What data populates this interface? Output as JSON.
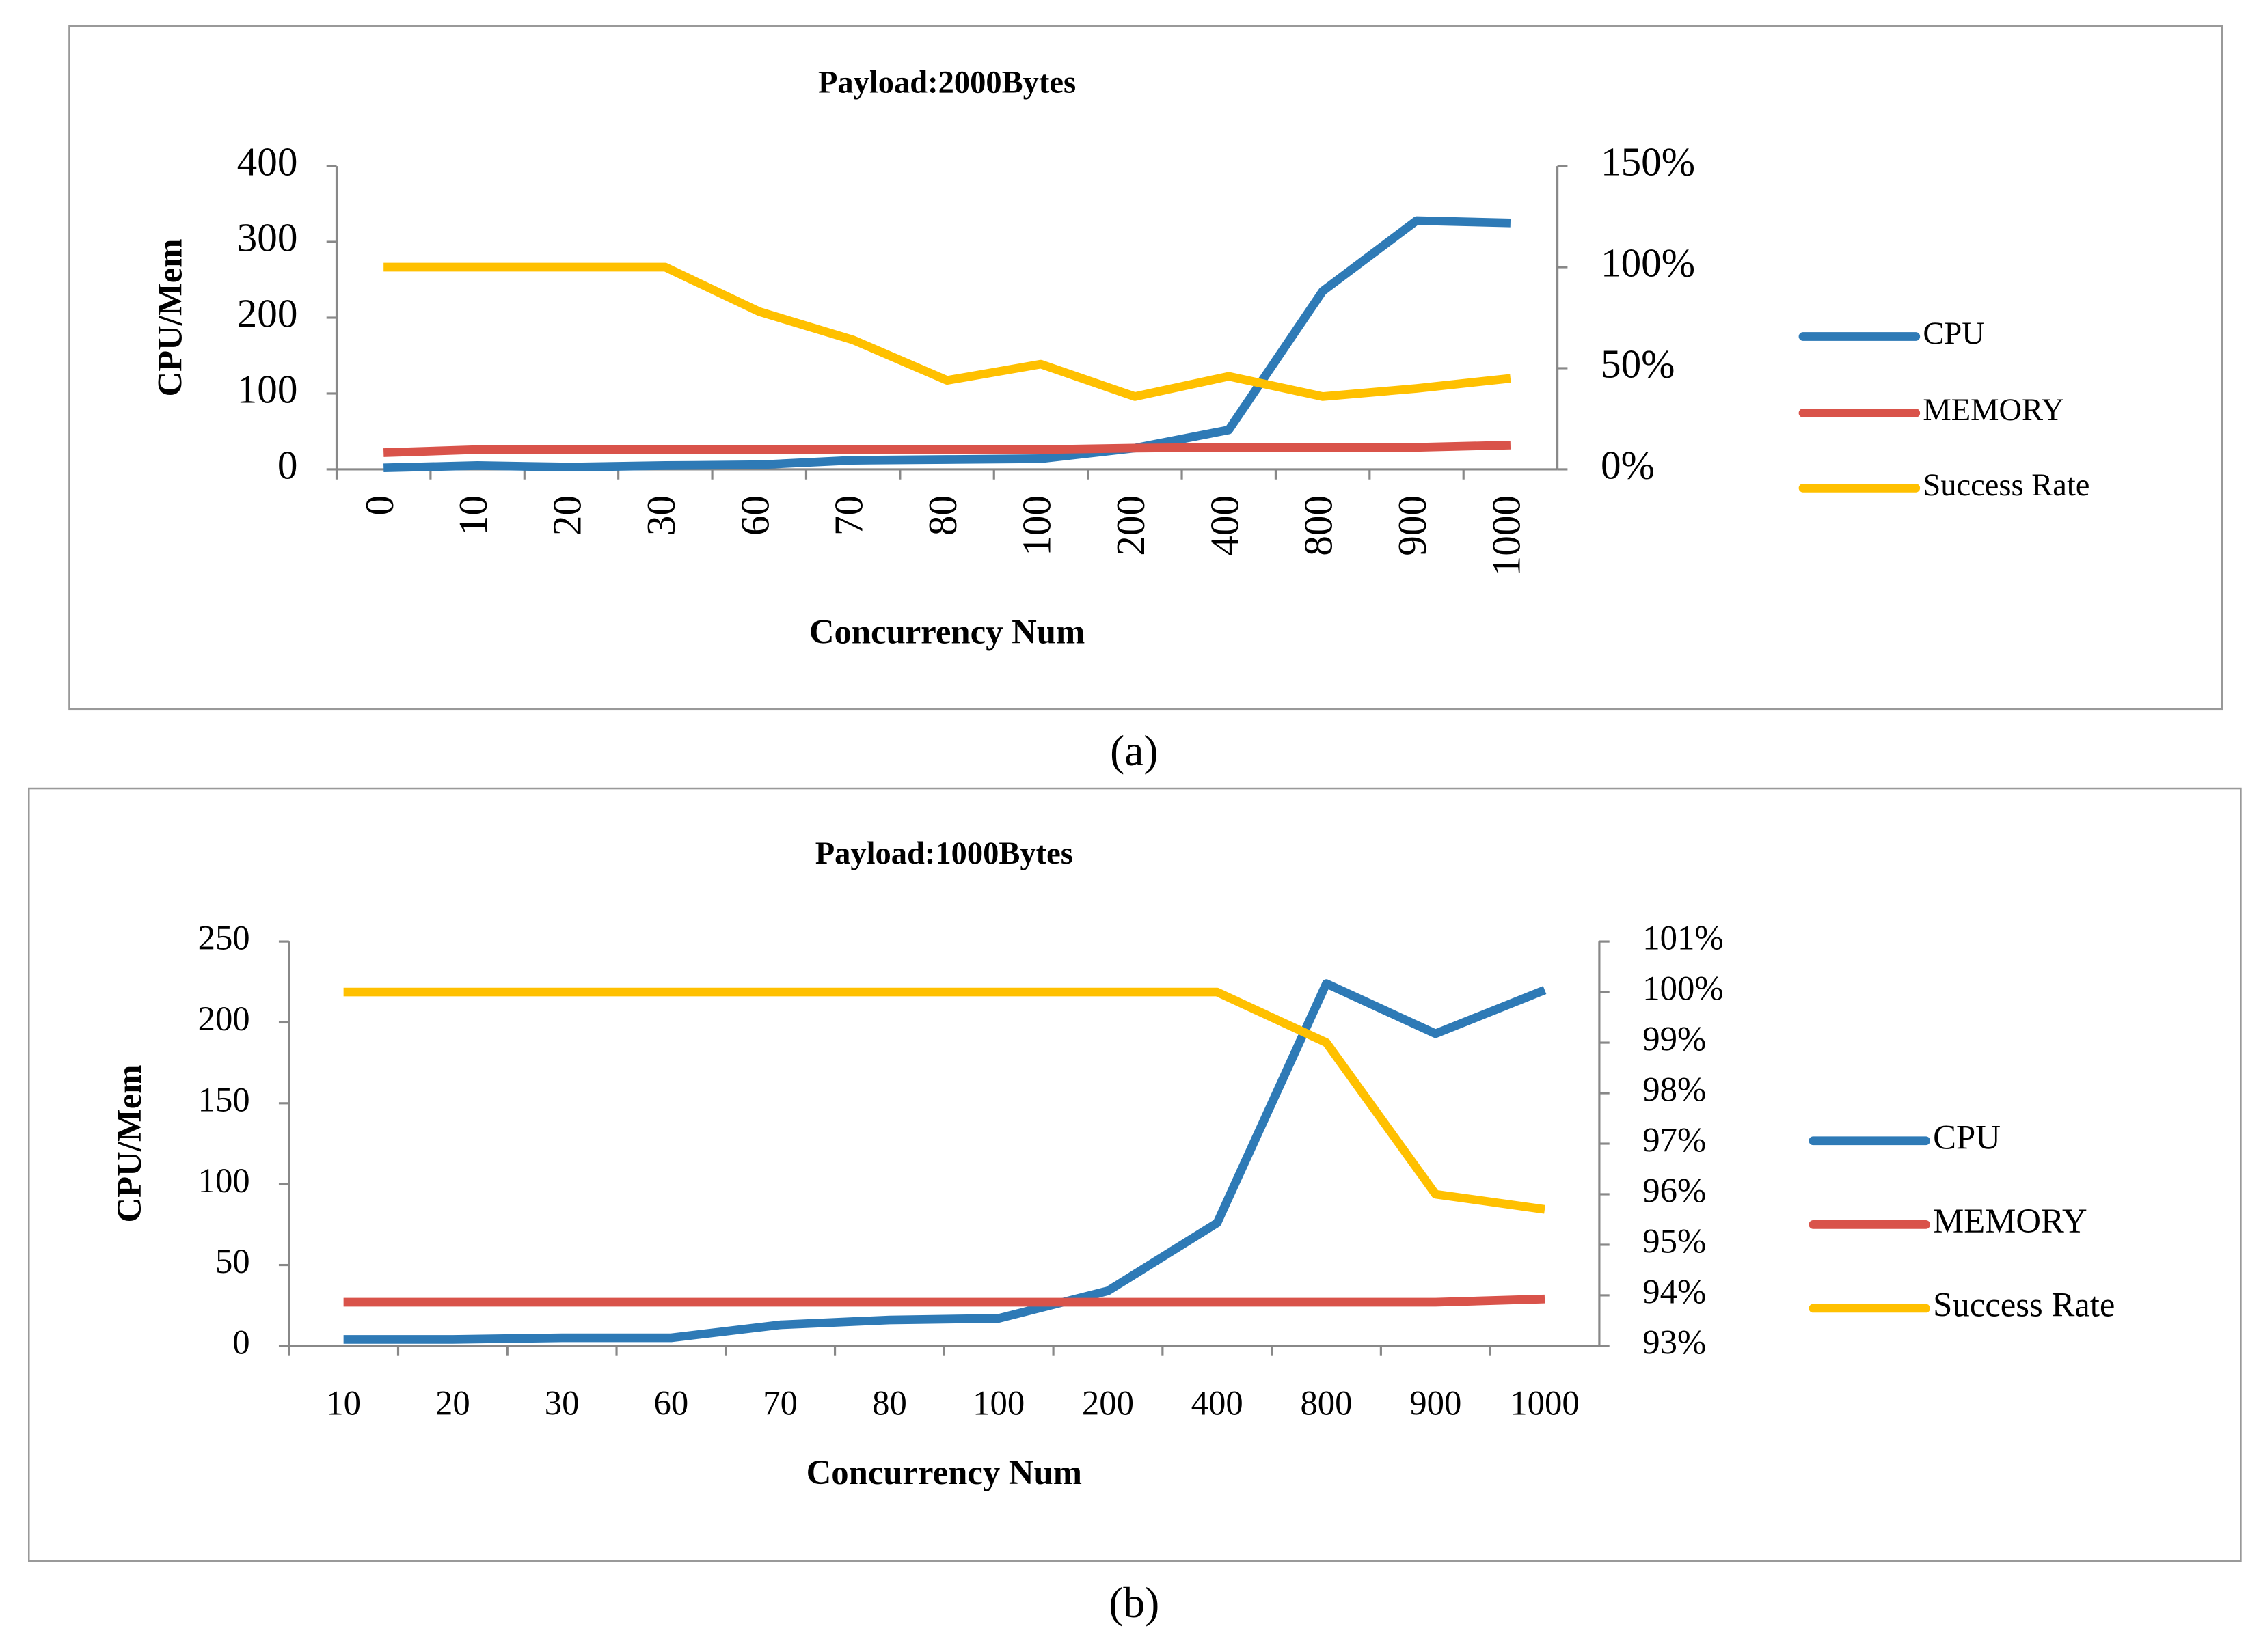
{
  "chart_data": [
    {
      "type": "line",
      "title": "Payload:2000Bytes",
      "caption": "(a)",
      "x_label": "Concurrency Num",
      "y_label": "CPU/Mem",
      "categories": [
        "0",
        "10",
        "20",
        "30",
        "60",
        "70",
        "80",
        "100",
        "200",
        "400",
        "800",
        "900",
        "1000"
      ],
      "series": [
        {
          "name": "CPU",
          "color": "#2e7ab6",
          "values": [
            2,
            5,
            3,
            5,
            6,
            12,
            13,
            14,
            28,
            52,
            235,
            328,
            325
          ]
        },
        {
          "name": "MEMORY",
          "color": "#d9534a",
          "values": [
            22,
            26,
            26,
            26,
            26,
            26,
            26,
            26,
            28,
            29,
            29,
            29,
            32
          ]
        },
        {
          "name": "Success Rate",
          "color": "#ffc000",
          "axis": "y2",
          "values": [
            100,
            100,
            100,
            100,
            78,
            64,
            44,
            52,
            36,
            46,
            36,
            40,
            45
          ]
        }
      ],
      "ylim": [
        0,
        400
      ],
      "yticks": [
        0,
        100,
        200,
        300,
        400
      ],
      "y2lim": [
        0,
        150
      ],
      "y2ticks": [
        {
          "value": 0,
          "label": "0%"
        },
        {
          "value": 50,
          "label": "50%"
        },
        {
          "value": 100,
          "label": "100%"
        },
        {
          "value": 150,
          "label": "150%"
        }
      ],
      "legend": "right"
    },
    {
      "type": "line",
      "title": "Payload:1000Bytes",
      "caption": "(b)",
      "x_label": "Concurrency Num",
      "y_label": "CPU/Mem",
      "categories": [
        "10",
        "20",
        "30",
        "60",
        "70",
        "80",
        "100",
        "200",
        "400",
        "800",
        "900",
        "1000"
      ],
      "series": [
        {
          "name": "CPU",
          "color": "#2e7ab6",
          "values": [
            4,
            4,
            5,
            5,
            13,
            16,
            17,
            34,
            76,
            224,
            193,
            220
          ]
        },
        {
          "name": "MEMORY",
          "color": "#d9534a",
          "values": [
            27,
            27,
            27,
            27,
            27,
            27,
            27,
            27,
            27,
            27,
            27,
            29
          ]
        },
        {
          "name": "Success Rate",
          "color": "#ffc000",
          "axis": "y2",
          "values": [
            100,
            100,
            100,
            100,
            100,
            100,
            100,
            100,
            100,
            99,
            96,
            95.7
          ]
        }
      ],
      "ylim": [
        0,
        250
      ],
      "yticks": [
        0,
        50,
        100,
        150,
        200,
        250
      ],
      "y2lim": [
        93,
        101
      ],
      "y2ticks": [
        {
          "value": 93,
          "label": "93%"
        },
        {
          "value": 94,
          "label": "94%"
        },
        {
          "value": 95,
          "label": "95%"
        },
        {
          "value": 96,
          "label": "96%"
        },
        {
          "value": 97,
          "label": "97%"
        },
        {
          "value": 98,
          "label": "98%"
        },
        {
          "value": 99,
          "label": "99%"
        },
        {
          "value": 100,
          "label": "100%"
        },
        {
          "value": 101,
          "label": "101%"
        }
      ],
      "legend": "right"
    }
  ]
}
